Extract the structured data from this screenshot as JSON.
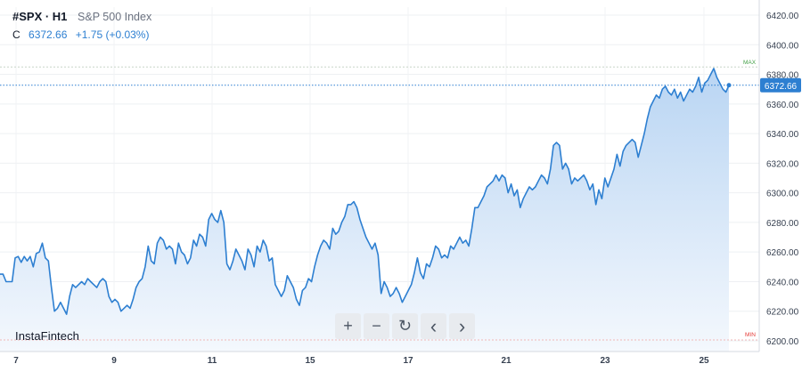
{
  "header": {
    "symbol": "#SPX · H1",
    "description": "S&P 500 Index",
    "close_label": "C",
    "close_value": "6372.66",
    "change": "+1.75 (+0.03%)"
  },
  "brand": "InstaFintech",
  "toolbar": {
    "zoom_in": "+",
    "zoom_out": "−",
    "reset": "↻",
    "prev": "‹",
    "next": "›"
  },
  "colors": {
    "line": "#2d7fd1",
    "area_top": "#b9d5f3",
    "area_bottom": "#f4f8fd",
    "max": "#43a047",
    "min": "#e53935"
  },
  "chart_data": {
    "type": "area",
    "title": "S&P 500 Index",
    "x_ticks": [
      "7",
      "9",
      "11",
      "15",
      "17",
      "21",
      "23",
      "25"
    ],
    "y_ticks": [
      "6420.00",
      "6400.00",
      "6380.00",
      "6360.00",
      "6340.00",
      "6320.00",
      "6300.00",
      "6280.00",
      "6260.00",
      "6240.00",
      "6220.00",
      "6200.00"
    ],
    "ylim": [
      6200,
      6420
    ],
    "current_label": "6372.66",
    "max_label": "MAX",
    "min_label": "MIN",
    "max_value": 6385,
    "min_value": 6200,
    "series": [
      {
        "values": [
          6245,
          6245,
          6240,
          6240,
          6240,
          6256,
          6257,
          6253,
          6257,
          6254,
          6257,
          6250,
          6259,
          6260,
          6266,
          6256,
          6254,
          6236,
          6220,
          6222,
          6226,
          6222,
          6218,
          6230,
          6238,
          6236,
          6238,
          6240,
          6238,
          6242,
          6240,
          6238,
          6236,
          6240,
          6242,
          6240,
          6230,
          6226,
          6228,
          6226,
          6220,
          6222,
          6224,
          6222,
          6228,
          6236,
          6240,
          6242,
          6250,
          6264,
          6254,
          6252,
          6266,
          6270,
          6268,
          6262,
          6264,
          6262,
          6252,
          6266,
          6260,
          6258,
          6252,
          6256,
          6268,
          6264,
          6272,
          6270,
          6264,
          6282,
          6286,
          6282,
          6280,
          6288,
          6280,
          6252,
          6248,
          6254,
          6262,
          6258,
          6254,
          6248,
          6262,
          6258,
          6250,
          6264,
          6260,
          6268,
          6264,
          6254,
          6256,
          6238,
          6234,
          6230,
          6234,
          6244,
          6240,
          6236,
          6228,
          6224,
          6234,
          6236,
          6242,
          6240,
          6250,
          6258,
          6264,
          6268,
          6266,
          6262,
          6276,
          6272,
          6274,
          6280,
          6284,
          6292,
          6292,
          6294,
          6290,
          6282,
          6276,
          6270,
          6266,
          6262,
          6266,
          6258,
          6232,
          6240,
          6236,
          6230,
          6232,
          6236,
          6232,
          6226,
          6230,
          6234,
          6238,
          6246,
          6256,
          6246,
          6242,
          6252,
          6250,
          6256,
          6264,
          6262,
          6256,
          6258,
          6256,
          6264,
          6262,
          6266,
          6270,
          6266,
          6268,
          6264,
          6276,
          6290,
          6290,
          6294,
          6298,
          6304,
          6306,
          6308,
          6312,
          6308,
          6312,
          6310,
          6300,
          6306,
          6298,
          6302,
          6290,
          6296,
          6300,
          6304,
          6302,
          6304,
          6308,
          6312,
          6310,
          6306,
          6316,
          6332,
          6334,
          6332,
          6316,
          6320,
          6316,
          6306,
          6310,
          6308,
          6310,
          6312,
          6308,
          6302,
          6306,
          6292,
          6302,
          6296,
          6310,
          6304,
          6310,
          6316,
          6326,
          6318,
          6328,
          6332,
          6334,
          6336,
          6334,
          6324,
          6332,
          6340,
          6350,
          6358,
          6362,
          6366,
          6364,
          6370,
          6372,
          6368,
          6366,
          6370,
          6364,
          6368,
          6362,
          6366,
          6370,
          6368,
          6372,
          6378,
          6368,
          6374,
          6376,
          6380,
          6384,
          6378,
          6374,
          6370,
          6368,
          6372.66
        ]
      }
    ]
  }
}
